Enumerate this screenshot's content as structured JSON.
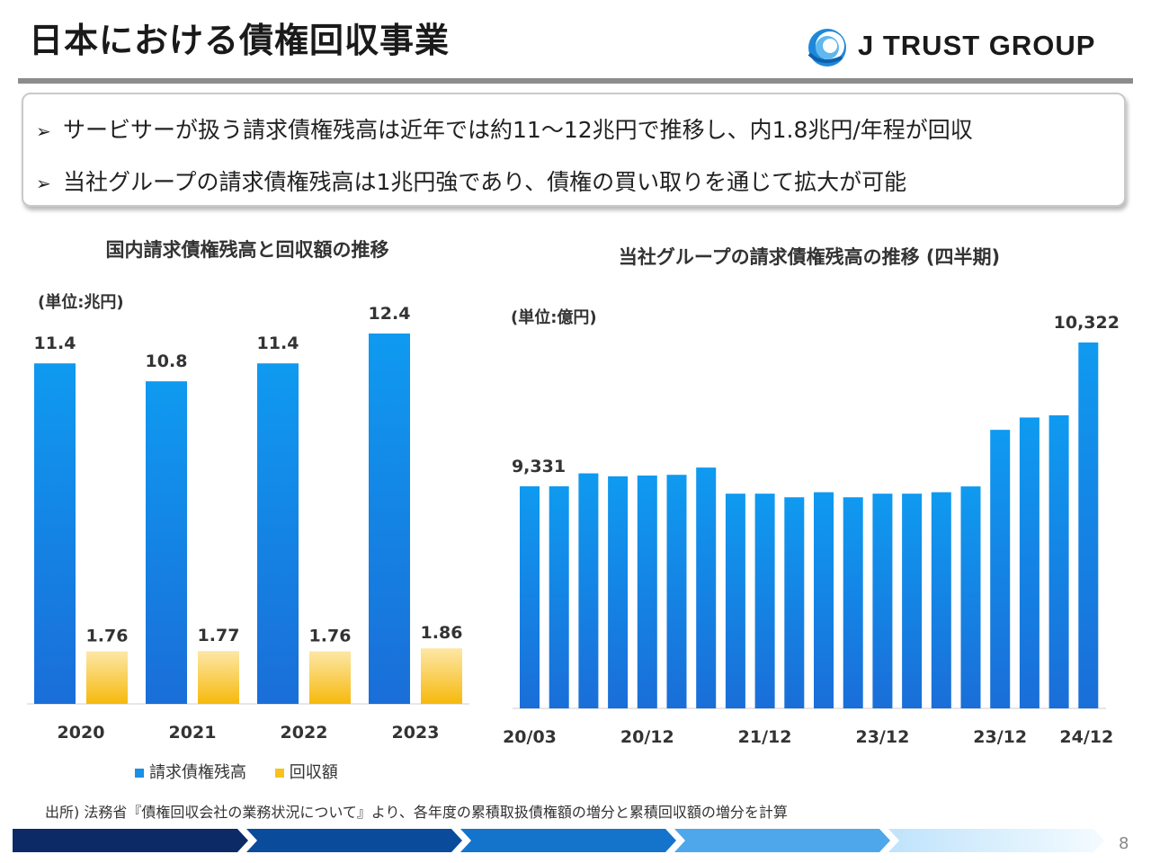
{
  "slide": {
    "title": "日本における債権回収事業",
    "page_number": "8",
    "source_note": "出所) 法務省『債権回収会社の業務状況について』より、各年度の累積取扱債権額の増分と累積回収額の増分を計算"
  },
  "logo": {
    "text": "J TRUST GROUP"
  },
  "callout": {
    "bullets": [
      "サービサーが扱う請求債権残高は近年では約11～12兆円で推移し、内1.8兆円/年程が回収",
      "当社グループの請求債権残高は1兆円強であり、債権の買い取りを通じて拡大が可能"
    ]
  },
  "colors": {
    "blue_bar": "#1a8fe6",
    "yellow_bar": "#f7c21a",
    "rule": "#8c8c8c"
  },
  "chart_data": [
    {
      "type": "bar",
      "title": "国内請求債権残高と回収額の推移",
      "unit": "(単位:兆円)",
      "categories": [
        "2020",
        "2021",
        "2022",
        "2023"
      ],
      "series": [
        {
          "name": "請求債権残高",
          "values": [
            11.4,
            10.8,
            11.4,
            12.4
          ],
          "labels": [
            "11.4",
            "10.8",
            "11.4",
            "12.4"
          ]
        },
        {
          "name": "回収額",
          "values": [
            1.76,
            1.77,
            1.76,
            1.86
          ],
          "labels": [
            "1.76",
            "1.77",
            "1.76",
            "1.86"
          ]
        }
      ],
      "ylim": [
        0,
        14
      ],
      "legend_position": "bottom"
    },
    {
      "type": "bar",
      "title": "当社グループの請求債権残高の推移 (四半期)",
      "unit": "(単位:億円)",
      "tick_labels": [
        "20/03",
        "20/12",
        "21/12",
        "23/12",
        "23/12",
        "24/12"
      ],
      "values": [
        9331,
        9331,
        9420,
        9400,
        9405,
        9410,
        9460,
        9280,
        9280,
        9255,
        9290,
        9255,
        9280,
        9280,
        9290,
        9330,
        9720,
        9805,
        9820,
        10322
      ],
      "value_labels": {
        "first": "9,331",
        "last": "10,322"
      },
      "ylim": [
        7800,
        10500
      ]
    }
  ]
}
